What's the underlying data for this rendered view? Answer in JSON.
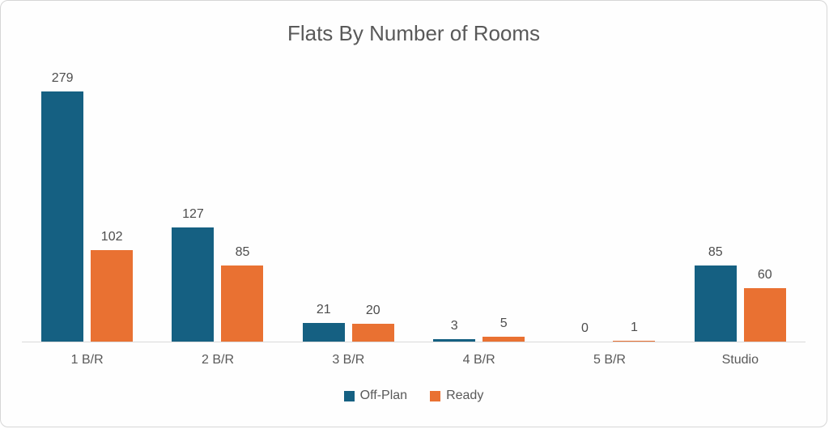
{
  "chart_data": {
    "type": "bar",
    "title": "Flats By Number of Rooms",
    "categories": [
      "1 B/R",
      "2 B/R",
      "3 B/R",
      "4 B/R",
      "5 B/R",
      "Studio"
    ],
    "series": [
      {
        "name": "Off-Plan",
        "color": "#156082",
        "values": [
          279,
          127,
          21,
          3,
          0,
          85
        ]
      },
      {
        "name": "Ready",
        "color": "#E97132",
        "values": [
          102,
          85,
          20,
          5,
          1,
          60
        ]
      }
    ],
    "xlabel": "",
    "ylabel": "",
    "ylim": [
      0,
      279
    ],
    "grid": false,
    "y_axis_visible": false,
    "data_labels": true,
    "legend_position": "bottom"
  },
  "style": {
    "title_color": "#595959",
    "value_label_color": "#4d4d4d",
    "axis_label_color": "#595959",
    "axis_line_color": "#d9d9d9",
    "card_border_color": "#d6d6d6",
    "background": "#fefefe"
  }
}
